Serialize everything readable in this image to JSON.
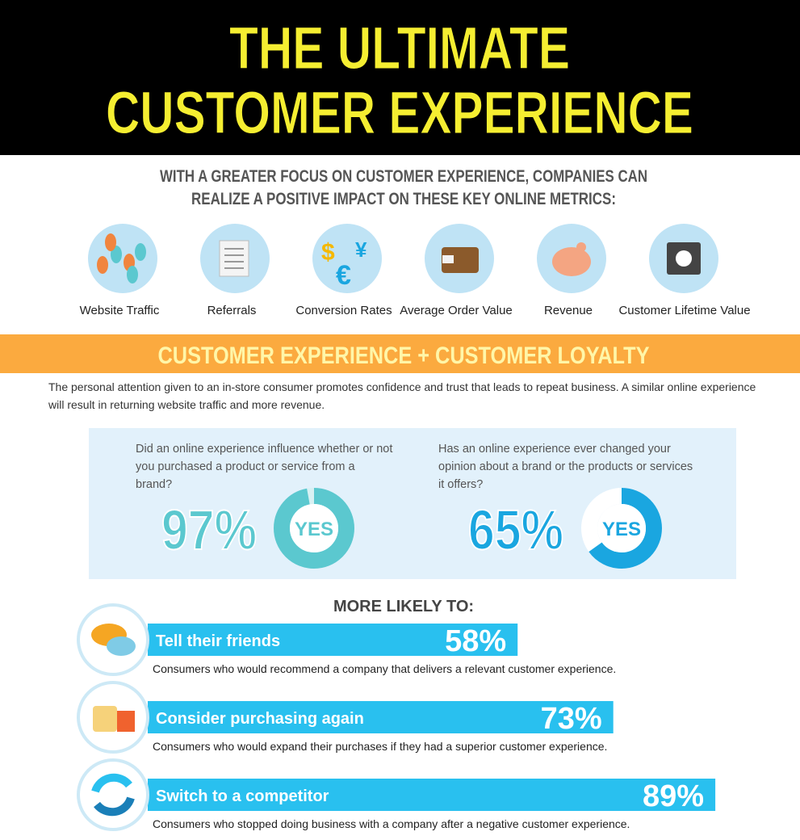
{
  "header": {
    "title_lines": [
      "THE ULTIMATE",
      "CUSTOMER EXPERIENCE"
    ]
  },
  "intro": {
    "lines": [
      "WITH A GREATER FOCUS ON CUSTOMER EXPERIENCE, COMPANIES CAN",
      "REALIZE A POSITIVE IMPACT ON THESE KEY ONLINE METRICS:"
    ]
  },
  "metrics": [
    "Website Traffic",
    "Referrals",
    "Conversion Rates",
    "Average Order Value",
    "Revenue",
    "Customer Lifetime Value"
  ],
  "section": {
    "title": "CUSTOMER EXPERIENCE + CUSTOMER LOYALTY",
    "paragraph": "The personal attention given to an in-store consumer promotes confidence and trust that leads to repeat business. A similar online experience will result in returning website traffic and more revenue."
  },
  "survey": [
    {
      "question": "Did an online experience influence whether or not you purchased a product or service from a brand?",
      "value": 97,
      "value_label": "97%",
      "answer": "YES"
    },
    {
      "question": "Has an online experience ever changed your opinion about a brand or the products or services it offers?",
      "value": 65,
      "value_label": "65%",
      "answer": "YES"
    }
  ],
  "more_likely": {
    "title": "MORE LIKELY TO:",
    "items": [
      {
        "label": "Tell their friends",
        "value": 58,
        "value_label": "58%",
        "description": "Consumers who would recommend a company that delivers a relevant customer experience."
      },
      {
        "label": "Consider purchasing again",
        "value": 73,
        "value_label": "73%",
        "description": "Consumers who would expand their purchases if they had a superior customer experience."
      },
      {
        "label": "Switch to a competitor",
        "value": 89,
        "value_label": "89%",
        "description": "Consumers who stopped doing business with a company after a negative customer experience."
      }
    ]
  }
}
